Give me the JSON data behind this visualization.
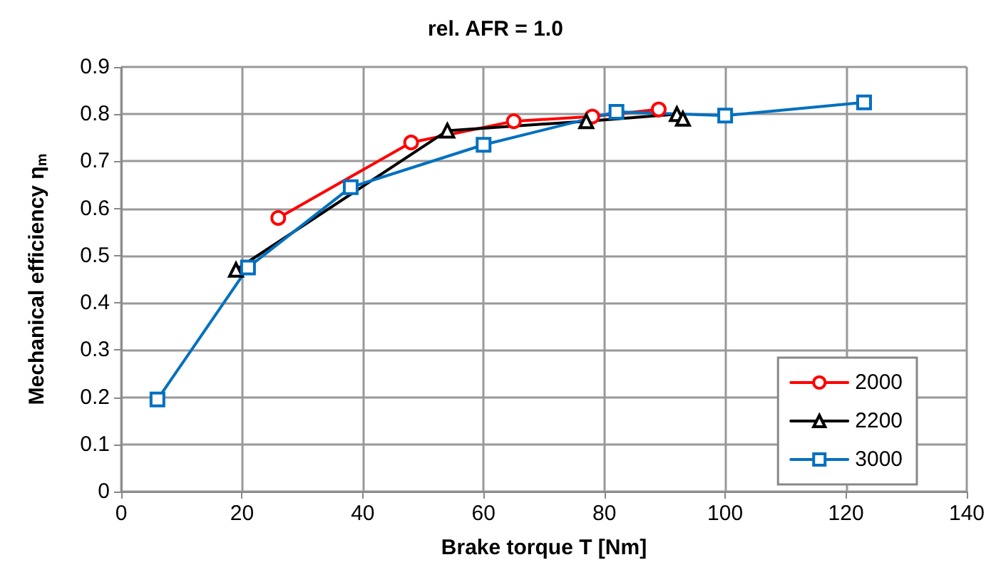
{
  "chart_data": {
    "type": "line",
    "title": "rel. AFR = 1.0",
    "xlabel": "Brake torque T [Nm]",
    "ylabel": "Mechanical efficiency η$_{m}$",
    "xlim": [
      0,
      140
    ],
    "xticks": [
      0,
      20,
      40,
      60,
      80,
      100,
      120,
      140
    ],
    "ylim": [
      0,
      0.9
    ],
    "yticks": [
      0,
      0.1,
      0.2,
      0.3,
      0.4,
      0.5,
      0.6,
      0.7,
      0.8,
      0.9
    ],
    "grid": true,
    "legend": "bottom right",
    "line_style": "solid",
    "series": [
      {
        "name": "2000",
        "color": "#ff0000",
        "marker": "circle",
        "x": [
          26,
          48,
          65,
          78,
          89
        ],
        "values": [
          0.58,
          0.74,
          0.785,
          0.795,
          0.81
        ]
      },
      {
        "name": "2200",
        "color": "#000000",
        "marker": "triangle",
        "x": [
          19,
          54,
          77,
          92,
          93
        ],
        "values": [
          0.47,
          0.765,
          0.785,
          0.8,
          0.79
        ]
      },
      {
        "name": "3000",
        "color": "#0070c0",
        "marker": "square",
        "x": [
          6,
          21,
          38,
          60,
          82,
          100,
          123
        ],
        "values": [
          0.195,
          0.475,
          0.645,
          0.735,
          0.805,
          0.797,
          0.825
        ]
      }
    ]
  }
}
